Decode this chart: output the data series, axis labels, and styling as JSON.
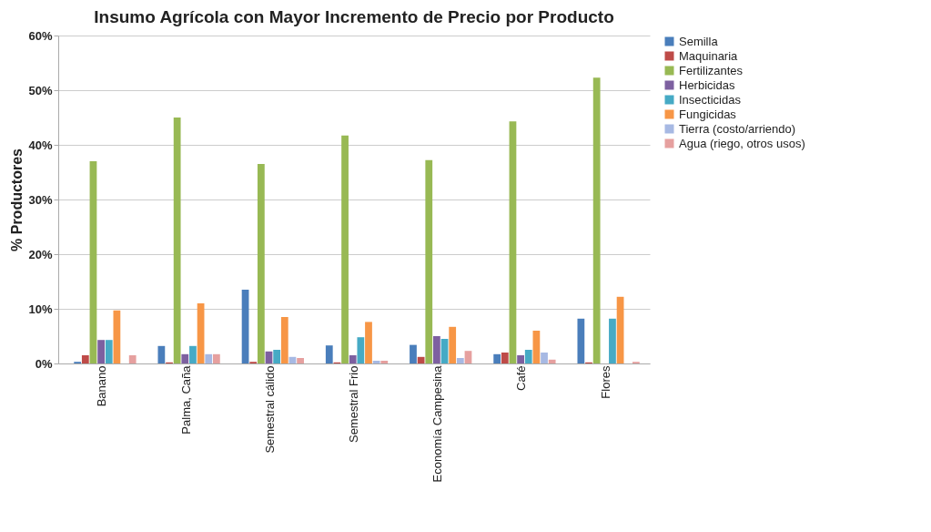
{
  "chart_data": {
    "type": "bar",
    "title": "Insumo Agrícola con Mayor Incremento de Precio por Producto",
    "ylabel": "% Productores",
    "categories": [
      "Banano",
      "Palma, Caña",
      "Semestral cálido",
      "Semestral Frio",
      "Economía Campesina",
      "Café",
      "Flores"
    ],
    "series": [
      {
        "name": "Semilla",
        "color": "#4a7ebb",
        "values": [
          0.3,
          3.2,
          13.5,
          3.3,
          3.4,
          1.7,
          8.2
        ]
      },
      {
        "name": "Maquinaria",
        "color": "#be4b48",
        "values": [
          1.5,
          0.2,
          0.3,
          0.2,
          1.2,
          2,
          0.2
        ]
      },
      {
        "name": "Fertilizantes",
        "color": "#98b954",
        "values": [
          37,
          45,
          36.5,
          41.7,
          37.2,
          44.3,
          52.3
        ]
      },
      {
        "name": "Herbicidas",
        "color": "#7d60a0",
        "values": [
          4.3,
          1.7,
          2.2,
          1.5,
          5,
          1.5,
          0
        ]
      },
      {
        "name": "Insecticidas",
        "color": "#46aac5",
        "values": [
          4.3,
          3.2,
          2.5,
          4.8,
          4.5,
          2.5,
          8.2
        ]
      },
      {
        "name": "Fungicidas",
        "color": "#f79646",
        "values": [
          9.7,
          11,
          8.5,
          7.6,
          6.7,
          6,
          12.2
        ]
      },
      {
        "name": "Tierra (costo/arriendo)",
        "color": "#a7b9e3",
        "values": [
          null,
          1.7,
          1.2,
          0.5,
          1,
          2,
          0
        ]
      },
      {
        "name": "Agua (riego, otros usos)",
        "color": "#e6a09f",
        "values": [
          1.5,
          1.7,
          1,
          0.5,
          2.3,
          0.7,
          0.3
        ]
      }
    ],
    "ylim": [
      0,
      60
    ],
    "yticks": [
      {
        "value": 0,
        "label": "0%"
      },
      {
        "value": 10,
        "label": "10%"
      },
      {
        "value": 20,
        "label": "20%"
      },
      {
        "value": 30,
        "label": "30%"
      },
      {
        "value": 40,
        "label": "40%"
      },
      {
        "value": 50,
        "label": "50%"
      },
      {
        "value": 60,
        "label": "60%"
      }
    ],
    "grid": "y",
    "legend": "right"
  }
}
